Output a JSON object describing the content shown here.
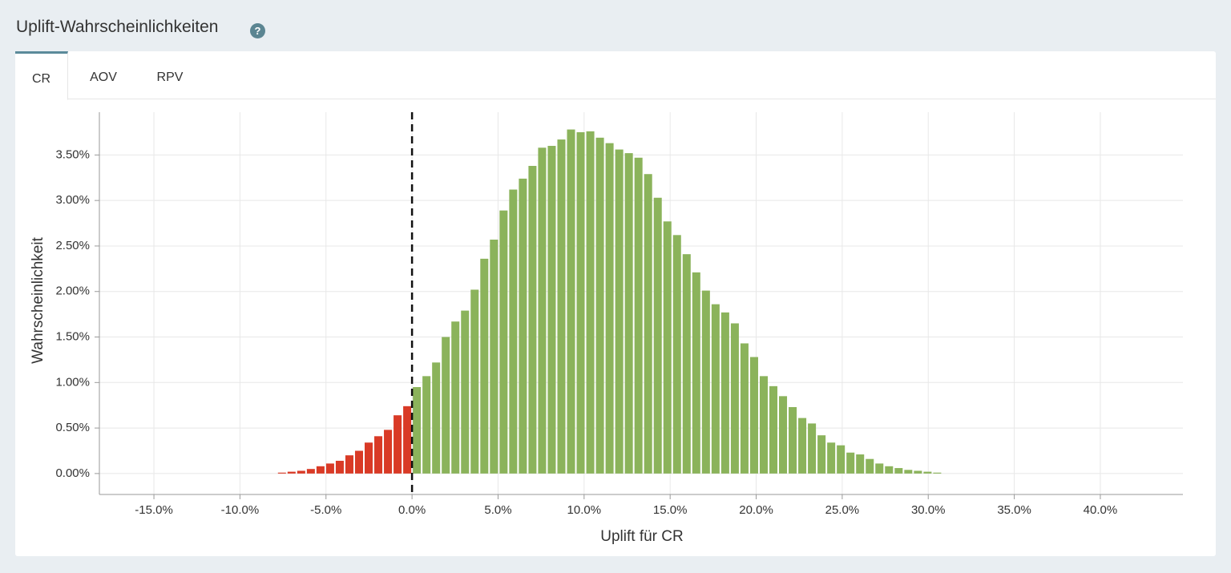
{
  "header": {
    "title": "Uplift-Wahrscheinlichkeiten",
    "help_icon": "?"
  },
  "tabs": [
    "CR",
    "AOV",
    "RPV"
  ],
  "chart_data": {
    "type": "histogram",
    "x_label": "Uplift für CR",
    "y_label": "Wahrscheinlichkeit",
    "bins": [
      -7.84,
      -7.28,
      -6.72,
      -6.16,
      -5.6,
      -5.04,
      -4.48,
      -3.92,
      -3.36,
      -2.8,
      -2.24,
      -1.68,
      -1.12,
      -0.56,
      0,
      0.56,
      1.12,
      1.68,
      2.24,
      2.8,
      3.36,
      3.92,
      4.48,
      5.04,
      5.6,
      6.16,
      6.72,
      7.28,
      7.84,
      8.4,
      8.96,
      9.52,
      10.08,
      10.64,
      11.2,
      11.76,
      12.32,
      12.88,
      13.44,
      14,
      14.56,
      15.12,
      15.68,
      16.24,
      16.8,
      17.36,
      17.92,
      18.48,
      19.04,
      19.6,
      20.16,
      20.72,
      21.28,
      21.84,
      22.4,
      22.96,
      23.52,
      24.08,
      24.64,
      25.2,
      25.76,
      26.32,
      26.88,
      27.44,
      28,
      28.56,
      29.12,
      29.68,
      30.24,
      30.8
    ],
    "values": [
      0.01,
      0.02,
      0.03,
      0.05,
      0.08,
      0.11,
      0.14,
      0.2,
      0.25,
      0.34,
      0.41,
      0.48,
      0.64,
      0.74,
      0.95,
      1.07,
      1.22,
      1.5,
      1.67,
      1.79,
      2.02,
      2.36,
      2.57,
      2.89,
      3.12,
      3.24,
      3.38,
      3.58,
      3.6,
      3.67,
      3.78,
      3.75,
      3.76,
      3.69,
      3.63,
      3.56,
      3.52,
      3.47,
      3.29,
      3.03,
      2.77,
      2.62,
      2.41,
      2.21,
      2.01,
      1.86,
      1.77,
      1.65,
      1.43,
      1.28,
      1.07,
      0.96,
      0.85,
      0.73,
      0.61,
      0.55,
      0.42,
      0.34,
      0.31,
      0.23,
      0.21,
      0.16,
      0.11,
      0.08,
      0.06,
      0.04,
      0.03,
      0.02,
      0.01
    ],
    "negative_color": "#d93a26",
    "positive_color": "#8bb35b",
    "reference_line": 0,
    "xlim": [
      -18.17,
      44.8
    ],
    "ylim": [
      -0.23,
      3.97
    ],
    "xticks": [
      {
        "value": -15,
        "label": "-15.0%"
      },
      {
        "value": -10,
        "label": "-10.0%"
      },
      {
        "value": -5,
        "label": "-5.0%"
      },
      {
        "value": 0,
        "label": "0.0%"
      },
      {
        "value": 5,
        "label": "5.0%"
      },
      {
        "value": 10,
        "label": "10.0%"
      },
      {
        "value": 15,
        "label": "15.0%"
      },
      {
        "value": 20,
        "label": "20.0%"
      },
      {
        "value": 25,
        "label": "25.0%"
      },
      {
        "value": 30,
        "label": "30.0%"
      },
      {
        "value": 35,
        "label": "35.0%"
      },
      {
        "value": 40,
        "label": "40.0%"
      }
    ],
    "yticks": [
      {
        "value": 0,
        "label": "0.00%"
      },
      {
        "value": 0.5,
        "label": "0.50%"
      },
      {
        "value": 1,
        "label": "1.00%"
      },
      {
        "value": 1.5,
        "label": "1.50%"
      },
      {
        "value": 2,
        "label": "2.00%"
      },
      {
        "value": 2.5,
        "label": "2.50%"
      },
      {
        "value": 3,
        "label": "3.00%"
      },
      {
        "value": 3.5,
        "label": "3.50%"
      }
    ],
    "grid": true
  }
}
